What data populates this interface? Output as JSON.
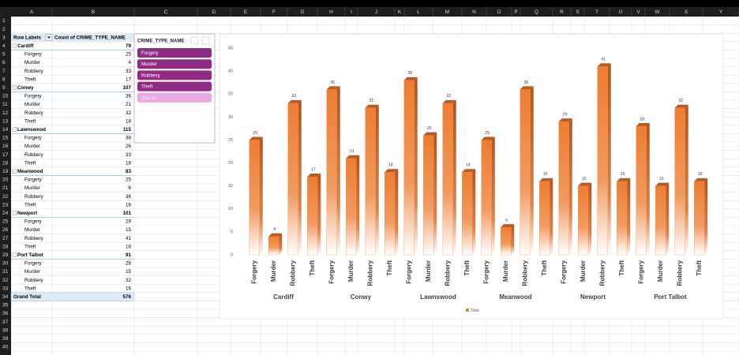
{
  "sheet": {
    "columns": [
      "A",
      "B",
      "C",
      "D",
      "E",
      "F",
      "G",
      "H",
      "I",
      "J",
      "K",
      "L",
      "M",
      "N",
      "O",
      "P",
      "Q",
      "R",
      "S",
      "T",
      "U",
      "V",
      "W",
      "X",
      "Y"
    ],
    "rows": [
      1,
      2,
      3,
      4,
      5,
      6,
      7,
      8,
      9,
      10,
      11,
      12,
      13,
      14,
      15,
      16,
      17,
      18,
      19,
      20,
      21,
      22,
      23,
      24,
      25,
      26,
      27,
      28,
      29,
      30,
      31,
      32,
      33,
      34,
      35,
      36,
      37,
      38,
      39,
      40
    ]
  },
  "pivot": {
    "headers": [
      "Row Labels",
      "Count of CRIME_TYPE_NAME"
    ],
    "groups": [
      {
        "label": "Cardiff",
        "count": 79,
        "items": [
          {
            "label": "Forgery",
            "count": 25
          },
          {
            "label": "Murder",
            "count": 4
          },
          {
            "label": "Robbery",
            "count": 33
          },
          {
            "label": "Theft",
            "count": 17
          }
        ]
      },
      {
        "label": "Conwy",
        "count": 107,
        "items": [
          {
            "label": "Forgery",
            "count": 36
          },
          {
            "label": "Murder",
            "count": 21
          },
          {
            "label": "Robbery",
            "count": 32
          },
          {
            "label": "Theft",
            "count": 18
          }
        ]
      },
      {
        "label": "Lawnswood",
        "count": 115,
        "items": [
          {
            "label": "Forgery",
            "count": 38
          },
          {
            "label": "Murder",
            "count": 26
          },
          {
            "label": "Robbery",
            "count": 33
          },
          {
            "label": "Theft",
            "count": 18
          }
        ]
      },
      {
        "label": "Meanwood",
        "count": 83,
        "items": [
          {
            "label": "Forgery",
            "count": 25
          },
          {
            "label": "Murder",
            "count": 6
          },
          {
            "label": "Robbery",
            "count": 36
          },
          {
            "label": "Theft",
            "count": 16
          }
        ]
      },
      {
        "label": "Newport",
        "count": 101,
        "items": [
          {
            "label": "Forgery",
            "count": 29
          },
          {
            "label": "Murder",
            "count": 15
          },
          {
            "label": "Robbery",
            "count": 41
          },
          {
            "label": "Theft",
            "count": 16
          }
        ]
      },
      {
        "label": "Port Talbot",
        "count": 91,
        "items": [
          {
            "label": "Forgery",
            "count": 28
          },
          {
            "label": "Murder",
            "count": 15
          },
          {
            "label": "Robbery",
            "count": 32
          },
          {
            "label": "Theft",
            "count": 16
          }
        ]
      }
    ],
    "grand_total": {
      "label": "Grand Total",
      "count": 576
    }
  },
  "slicer": {
    "title": "CRIME_TYPE_NAME",
    "items": [
      "Forgery",
      "Murder",
      "Robbery",
      "Theft",
      "(blank)"
    ]
  },
  "chart_data": {
    "type": "bar",
    "groups": [
      "Cardiff",
      "Conwy",
      "Lawnswood",
      "Meanwood",
      "Newport",
      "Port Talbot"
    ],
    "categories": [
      "Forgery",
      "Murder",
      "Robbery",
      "Theft",
      "Forgery",
      "Murder",
      "Robbery",
      "Theft",
      "Forgery",
      "Murder",
      "Robbery",
      "Theft",
      "Forgery",
      "Murder",
      "Robbery",
      "Theft",
      "Forgery",
      "Murder",
      "Robbery",
      "Theft",
      "Forgery",
      "Murder",
      "Robbery",
      "Theft"
    ],
    "series": [
      {
        "name": "Total",
        "color": "#ed7d31",
        "values": [
          25,
          4,
          33,
          17,
          36,
          21,
          32,
          18,
          38,
          26,
          33,
          18,
          25,
          6,
          36,
          16,
          29,
          15,
          41,
          16,
          28,
          15,
          32,
          16
        ]
      }
    ],
    "ylim": [
      0,
      45
    ],
    "yticks": [
      0,
      5,
      10,
      15,
      20,
      25,
      30,
      35,
      40,
      45
    ],
    "grid": false,
    "legend": "bottom"
  }
}
